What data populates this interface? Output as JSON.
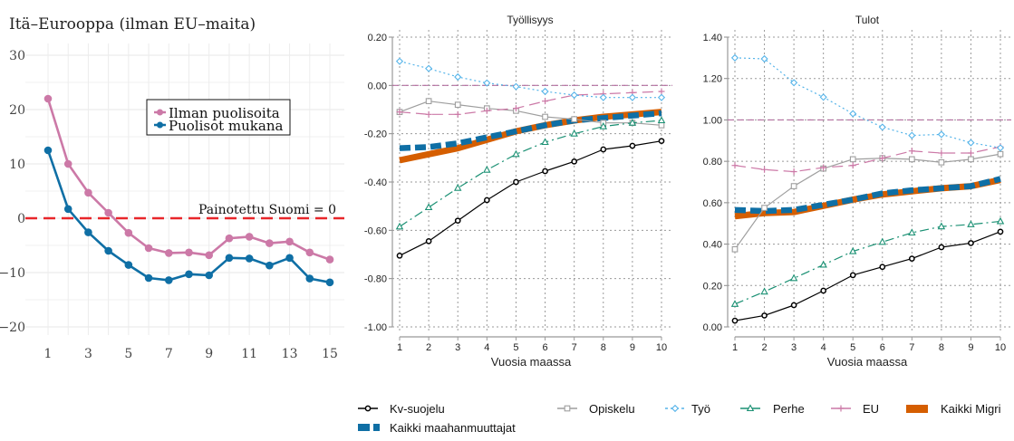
{
  "chart_data": [
    {
      "id": "left",
      "type": "line",
      "title": "Itä–Eurooppa (ilman EU–maita)",
      "xlabel": "",
      "ylabel": "",
      "x": [
        1,
        2,
        3,
        4,
        5,
        6,
        7,
        8,
        9,
        10,
        11,
        12,
        13,
        14,
        15
      ],
      "x_tick_labels": [
        "1",
        "3",
        "5",
        "7",
        "9",
        "11",
        "13",
        "15"
      ],
      "x_ticks": [
        1,
        3,
        5,
        7,
        9,
        11,
        13,
        15
      ],
      "ylim": [
        -23,
        32
      ],
      "y_ticks": [
        30,
        20,
        10,
        0,
        -10,
        -20
      ],
      "y_tick_labels": [
        "30",
        "20",
        "10",
        "0",
        "−10",
        "−20"
      ],
      "grid": true,
      "legend_position": "center",
      "reference_line": {
        "value": 0,
        "label": "Painotettu Suomi = 0",
        "color": "#e8262a",
        "style": "dashed"
      },
      "series": [
        {
          "name": "Ilman puolisoita",
          "color": "#cc79a7",
          "marker": "circle",
          "values": [
            22,
            10,
            4.7,
            1,
            -2.7,
            -5.5,
            -6.4,
            -6.3,
            -6.8,
            -3.7,
            -3.4,
            -4.6,
            -4.3,
            -6.3,
            -7.6
          ]
        },
        {
          "name": "Puolisot mukana",
          "color": "#0f6fa5",
          "marker": "circle",
          "values": [
            12.5,
            1.7,
            -2.6,
            -6,
            -8.6,
            -11,
            -11.4,
            -10.3,
            -10.5,
            -7.3,
            -7.4,
            -8.7,
            -7.3,
            -11.1,
            -11.8
          ]
        }
      ]
    },
    {
      "id": "mid",
      "type": "line",
      "title": "Työllisyys",
      "xlabel": "Vuosia maassa",
      "ylabel": "",
      "x": [
        1,
        2,
        3,
        4,
        5,
        6,
        7,
        8,
        9,
        10
      ],
      "ylim": [
        -1.0,
        0.2
      ],
      "y_ticks": [
        0.2,
        0.0,
        -0.2,
        -0.4,
        -0.6,
        -0.8,
        -1.0
      ],
      "y_tick_labels": [
        "0.20",
        "0.00",
        "-0.20",
        "-0.40",
        "-0.60",
        "-0.80",
        "-1.00"
      ],
      "grid": true,
      "reference_line": {
        "value": 0.0,
        "color": "#b46fa0",
        "style": "dashed"
      },
      "series": [
        {
          "name": "Kv-suojelu",
          "values": [
            -0.705,
            -0.645,
            -0.56,
            -0.475,
            -0.4,
            -0.355,
            -0.315,
            -0.265,
            -0.25,
            -0.23
          ]
        },
        {
          "name": "Opiskelu",
          "values": [
            -0.11,
            -0.065,
            -0.08,
            -0.095,
            -0.105,
            -0.13,
            -0.14,
            -0.155,
            -0.155,
            -0.165
          ]
        },
        {
          "name": "Työ",
          "values": [
            0.1,
            0.07,
            0.035,
            0.01,
            -0.005,
            -0.025,
            -0.04,
            -0.05,
            -0.05,
            -0.05
          ]
        },
        {
          "name": "Perhe",
          "values": [
            -0.585,
            -0.505,
            -0.425,
            -0.35,
            -0.285,
            -0.235,
            -0.2,
            -0.17,
            -0.155,
            -0.145
          ]
        },
        {
          "name": "EU",
          "values": [
            -0.11,
            -0.12,
            -0.12,
            -0.105,
            -0.095,
            -0.065,
            -0.04,
            -0.035,
            -0.03,
            -0.025
          ]
        },
        {
          "name": "Kaikki Migri",
          "values": [
            -0.31,
            -0.285,
            -0.26,
            -0.225,
            -0.19,
            -0.165,
            -0.145,
            -0.13,
            -0.12,
            -0.11
          ]
        },
        {
          "name": "Kaikki maahanmuuttajat",
          "values": [
            -0.26,
            -0.255,
            -0.24,
            -0.215,
            -0.19,
            -0.165,
            -0.145,
            -0.135,
            -0.125,
            -0.115
          ]
        }
      ]
    },
    {
      "id": "right",
      "type": "line",
      "title": "Tulot",
      "xlabel": "Vuosia maassa",
      "ylabel": "",
      "x": [
        1,
        2,
        3,
        4,
        5,
        6,
        7,
        8,
        9,
        10
      ],
      "ylim": [
        0.0,
        1.4
      ],
      "y_ticks": [
        1.4,
        1.2,
        1.0,
        0.8,
        0.6,
        0.4,
        0.2,
        0.0
      ],
      "y_tick_labels": [
        "1.40",
        "1.20",
        "1.00",
        "0.80",
        "0.60",
        "0.40",
        "0.20",
        "0.00"
      ],
      "grid": true,
      "reference_line": {
        "value": 1.0,
        "color": "#b46fa0",
        "style": "dashed"
      },
      "series": [
        {
          "name": "Kv-suojelu",
          "values": [
            0.03,
            0.055,
            0.105,
            0.175,
            0.25,
            0.29,
            0.33,
            0.385,
            0.405,
            0.46
          ]
        },
        {
          "name": "Opiskelu",
          "values": [
            0.375,
            0.575,
            0.68,
            0.765,
            0.81,
            0.815,
            0.81,
            0.795,
            0.81,
            0.835
          ]
        },
        {
          "name": "Työ",
          "values": [
            1.3,
            1.295,
            1.18,
            1.11,
            1.03,
            0.965,
            0.925,
            0.93,
            0.89,
            0.865
          ]
        },
        {
          "name": "Perhe",
          "values": [
            0.11,
            0.17,
            0.235,
            0.3,
            0.365,
            0.41,
            0.455,
            0.485,
            0.495,
            0.51
          ]
        },
        {
          "name": "EU",
          "values": [
            0.78,
            0.76,
            0.75,
            0.77,
            0.78,
            0.815,
            0.85,
            0.84,
            0.84,
            0.87
          ]
        },
        {
          "name": "Kaikki Migri",
          "values": [
            0.535,
            0.55,
            0.555,
            0.585,
            0.615,
            0.64,
            0.655,
            0.67,
            0.68,
            0.71
          ]
        },
        {
          "name": "Kaikki maahanmuuttajat",
          "values": [
            0.565,
            0.56,
            0.565,
            0.59,
            0.615,
            0.645,
            0.66,
            0.67,
            0.68,
            0.715
          ]
        }
      ]
    }
  ],
  "series_styles": {
    "Kv-suojelu": {
      "color": "#000000",
      "dash": "solid",
      "marker": "circle",
      "thick": false
    },
    "Opiskelu": {
      "color": "#9e9e9e",
      "dash": "solid",
      "marker": "square",
      "thick": false
    },
    "Työ": {
      "color": "#56b4e9",
      "dash": "dotted",
      "marker": "diamond",
      "thick": false
    },
    "Perhe": {
      "color": "#1a9073",
      "dash": "dashdot",
      "marker": "triangle",
      "thick": false
    },
    "EU": {
      "color": "#cc79a7",
      "dash": "longdash",
      "marker": "plus",
      "thick": false
    },
    "Kaikki Migri": {
      "color": "#d55e00",
      "dash": "solid",
      "marker": "none",
      "thick": true
    },
    "Kaikki maahanmuuttajat": {
      "color": "#0f6fa5",
      "dash": "dashed",
      "marker": "none",
      "thick": true
    }
  },
  "legend": {
    "position": "bottom",
    "items": [
      {
        "name": "Kv-suojelu"
      },
      {
        "name": "Opiskelu"
      },
      {
        "name": "Työ"
      },
      {
        "name": "Perhe"
      },
      {
        "name": "EU"
      },
      {
        "name": "Kaikki Migri"
      },
      {
        "name": "Kaikki maahanmuuttajat"
      }
    ]
  }
}
